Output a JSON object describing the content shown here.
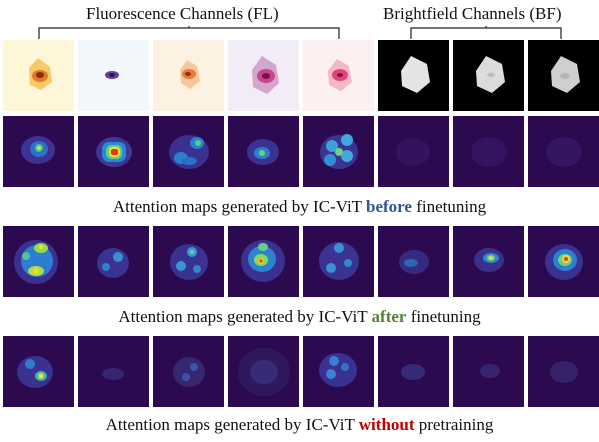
{
  "headers": {
    "fl": "Fluorescence Channels (FL)",
    "bf": "Brightfield Channels (BF)"
  },
  "captions": {
    "before": {
      "prefix": "Attention maps generated by IC-ViT ",
      "keyword": "before",
      "suffix": " finetuning",
      "color": "#2f5597"
    },
    "after": {
      "prefix": "Attention maps generated by IC-ViT ",
      "keyword": "after",
      "suffix": " finetuning",
      "color": "#548235"
    },
    "without": {
      "prefix": "Attention maps generated by IC-ViT ",
      "keyword": "without",
      "suffix": " pretraining",
      "color": "#c00000"
    }
  },
  "colors": {
    "attention_background": "#2b0a4f",
    "bf_background": "#000000"
  }
}
